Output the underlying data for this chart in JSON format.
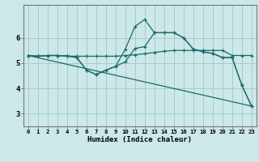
{
  "xlabel": "Humidex (Indice chaleur)",
  "bg_color": "#cce8e8",
  "grid_color_major": "#aacccc",
  "grid_color_minor": "#bbdddd",
  "line_color": "#1a6b6b",
  "xlim": [
    -0.5,
    23.5
  ],
  "ylim": [
    2.5,
    7.3
  ],
  "xticks": [
    0,
    1,
    2,
    3,
    4,
    5,
    6,
    7,
    8,
    9,
    10,
    11,
    12,
    13,
    14,
    15,
    16,
    17,
    18,
    19,
    20,
    21,
    22,
    23
  ],
  "yticks": [
    3,
    4,
    5,
    6
  ],
  "series": [
    {
      "x": [
        0,
        1,
        2,
        3,
        4,
        5,
        6,
        7,
        8,
        9,
        10,
        11,
        12,
        13,
        14,
        15,
        16,
        17,
        18,
        19,
        20,
        21,
        22,
        23
      ],
      "y": [
        5.3,
        5.27,
        5.3,
        5.3,
        5.28,
        5.27,
        5.27,
        5.27,
        5.27,
        5.27,
        5.3,
        5.33,
        5.37,
        5.42,
        5.47,
        5.5,
        5.5,
        5.5,
        5.5,
        5.5,
        5.5,
        5.3,
        5.3,
        5.3
      ],
      "has_marker": true
    },
    {
      "x": [
        0,
        1,
        2,
        3,
        4,
        5,
        6,
        7,
        8,
        9,
        10,
        11,
        12,
        13,
        14,
        15,
        16,
        17,
        18,
        19,
        20,
        21,
        22,
        23
      ],
      "y": [
        5.3,
        5.27,
        5.3,
        5.3,
        5.28,
        5.22,
        4.72,
        4.55,
        4.72,
        4.87,
        5.55,
        6.45,
        6.72,
        6.2,
        6.2,
        6.2,
        6.0,
        5.55,
        5.45,
        5.38,
        5.22,
        5.22,
        4.12,
        3.3
      ],
      "has_marker": true
    },
    {
      "x": [
        0,
        1,
        2,
        3,
        4,
        5,
        6,
        7,
        8,
        9,
        10,
        11,
        12,
        13,
        14,
        15,
        16,
        17,
        18,
        19,
        20,
        21,
        22,
        23
      ],
      "y": [
        5.3,
        5.27,
        5.3,
        5.3,
        5.28,
        5.22,
        4.72,
        4.55,
        4.72,
        4.87,
        5.05,
        5.58,
        5.65,
        6.2,
        6.2,
        6.2,
        6.0,
        5.55,
        5.45,
        5.38,
        5.22,
        5.22,
        4.12,
        3.3
      ],
      "has_marker": true
    },
    {
      "x": [
        0,
        23
      ],
      "y": [
        5.3,
        3.3
      ],
      "has_marker": false
    }
  ]
}
